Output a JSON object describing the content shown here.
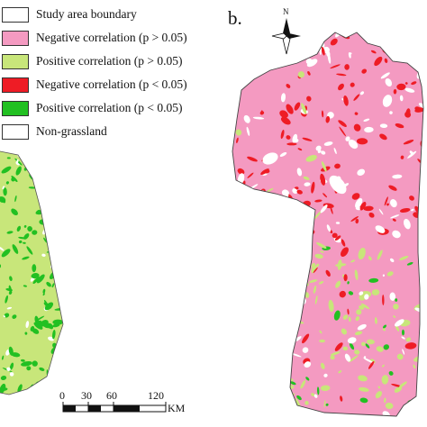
{
  "legend": {
    "items": [
      {
        "label": "Study area boundary",
        "color": "#ffffff"
      },
      {
        "label": "Negative correlation (p > 0.05)",
        "color": "#f49ac1"
      },
      {
        "label": "Positive correlation (p > 0.05)",
        "color": "#c8e67a"
      },
      {
        "label": "Negative correlation (p < 0.05)",
        "color": "#ee1c25"
      },
      {
        "label": "Positive correlation (p < 0.05)",
        "color": "#22c022"
      },
      {
        "label": "Non-grassland",
        "color": "#ffffff"
      }
    ]
  },
  "panel": {
    "label": "b."
  },
  "north_arrow": {
    "letter": "N"
  },
  "scale_bar": {
    "ticks": [
      "0",
      "30",
      "60",
      "120"
    ],
    "unit": "KM"
  }
}
